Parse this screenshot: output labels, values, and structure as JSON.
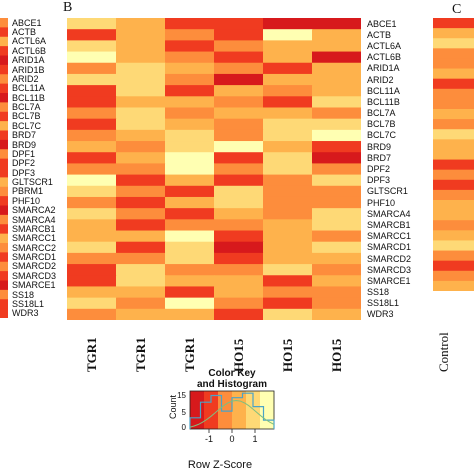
{
  "panels": {
    "b_label": "B",
    "c_label": "C"
  },
  "genes": [
    "ABCE1",
    "ACTB",
    "ACTL6A",
    "ACTL6B",
    "ARID1A",
    "ARID1B",
    "ARID2",
    "BCL11A",
    "BCL11B",
    "BCL7A",
    "BCL7B",
    "BCL7C",
    "BRD7",
    "BRD9",
    "DPF1",
    "DPF2",
    "DPF3",
    "GLTSCR1",
    "PBRM1",
    "PHF10",
    "SMARCA2",
    "SMARCA4",
    "SMARCB1",
    "SMARCC1",
    "SMARCC2",
    "SMARCD1",
    "SMARCD2",
    "SMARCD3",
    "SMARCE1",
    "SS18",
    "SS18L1",
    "WDR3"
  ],
  "right_genes": [
    "ABCE1",
    "ACTB",
    "ACTL6A",
    "ACTL6B",
    "ARID1A",
    "ARID2",
    "BCL11A",
    "BCL11B",
    "BCL7A",
    "BCL7B",
    "BCL7C",
    "BRD9",
    "BRD7",
    "DPF2",
    "DPF3",
    "GLTSCR1",
    "PHF10",
    "SMARCA4",
    "SMARCB1",
    "SMARCC1",
    "SMARCD1",
    "SMARCD2",
    "SMARCD3",
    "SMARCE1",
    "SS18",
    "SS18L1",
    "WDR3"
  ],
  "columns": [
    "TGR1",
    "TGR1",
    "TGR1",
    "HO15",
    "HO15",
    "HO15"
  ],
  "control_label": "Control",
  "colors": {
    "scale": [
      "#d7191c",
      "#f03b20",
      "#fd8d3c",
      "#feb24c",
      "#fed976",
      "#ffffb2"
    ],
    "histogram_line": "#4aa3c8",
    "density_line": "#7fbf7f"
  },
  "key": {
    "title_line1": "Color Key",
    "title_line2": "and Histogram",
    "ylabel": "Count",
    "xlabel": "Row Z-Score",
    "yticks": [
      "0",
      "5",
      "15"
    ],
    "xticks": [
      "-1",
      "0",
      "1"
    ]
  },
  "chart_data": {
    "type": "heatmap",
    "rows": [
      "ABCE1",
      "ACTB",
      "ACTL6A",
      "ACTL6B",
      "ARID1A",
      "ARID2",
      "BCL11A",
      "BCL11B",
      "BCL7A",
      "BCL7B",
      "BCL7C",
      "BRD9",
      "BRD7",
      "DPF2",
      "DPF3",
      "GLTSCR1",
      "PHF10",
      "SMARCA4",
      "SMARCB1",
      "SMARCC1",
      "SMARCD1",
      "SMARCD2",
      "SMARCD3",
      "SMARCE1",
      "SS18",
      "SS18L1",
      "WDR3"
    ],
    "columns": [
      "TGR1",
      "TGR1",
      "TGR1",
      "HO15",
      "HO15",
      "HO15"
    ],
    "values": [
      [
        4,
        3,
        1,
        1,
        0,
        0
      ],
      [
        1,
        3,
        2,
        1,
        5,
        3
      ],
      [
        4,
        3,
        1,
        2,
        3,
        3
      ],
      [
        5,
        3,
        2,
        1,
        3,
        0
      ],
      [
        2,
        4,
        3,
        2,
        1,
        3
      ],
      [
        4,
        4,
        2,
        0,
        3,
        3
      ],
      [
        1,
        4,
        1,
        3,
        2,
        3
      ],
      [
        1,
        3,
        3,
        2,
        1,
        4
      ],
      [
        2,
        4,
        2,
        3,
        3,
        2
      ],
      [
        1,
        4,
        3,
        2,
        4,
        4
      ],
      [
        2,
        3,
        4,
        2,
        4,
        5
      ],
      [
        3,
        2,
        4,
        5,
        3,
        1
      ],
      [
        1,
        3,
        5,
        1,
        4,
        0
      ],
      [
        2,
        2,
        5,
        2,
        4,
        2
      ],
      [
        5,
        1,
        3,
        1,
        2,
        4
      ],
      [
        4,
        2,
        1,
        4,
        2,
        2
      ],
      [
        2,
        1,
        3,
        4,
        2,
        2
      ],
      [
        4,
        2,
        1,
        3,
        2,
        4
      ],
      [
        3,
        1,
        2,
        2,
        3,
        4
      ],
      [
        3,
        3,
        5,
        1,
        3,
        2
      ],
      [
        4,
        1,
        4,
        0,
        3,
        4
      ],
      [
        2,
        2,
        4,
        1,
        3,
        3
      ],
      [
        1,
        4,
        2,
        2,
        4,
        2
      ],
      [
        1,
        4,
        3,
        3,
        1,
        3
      ],
      [
        3,
        3,
        1,
        3,
        2,
        2
      ],
      [
        4,
        2,
        5,
        2,
        1,
        2
      ],
      [
        2,
        3,
        3,
        1,
        4,
        3
      ]
    ],
    "control_values": [
      1,
      3,
      4,
      2,
      2,
      3,
      1,
      2,
      2,
      3,
      2,
      4,
      3,
      3,
      1,
      2,
      1,
      2,
      3,
      3,
      2,
      3,
      4,
      2,
      1,
      2,
      3
    ],
    "left_column_values": [
      2,
      1,
      3,
      1,
      0,
      1,
      2,
      1,
      0,
      2,
      1,
      3,
      1,
      0,
      2,
      1,
      1,
      3,
      2,
      1,
      0,
      2,
      1,
      3,
      2,
      1,
      2,
      1,
      0,
      2,
      1,
      1
    ],
    "color_scale_range": [
      -1.5,
      1.5
    ],
    "histogram_counts": [
      5,
      12,
      15,
      8,
      14,
      16,
      10,
      4
    ]
  }
}
